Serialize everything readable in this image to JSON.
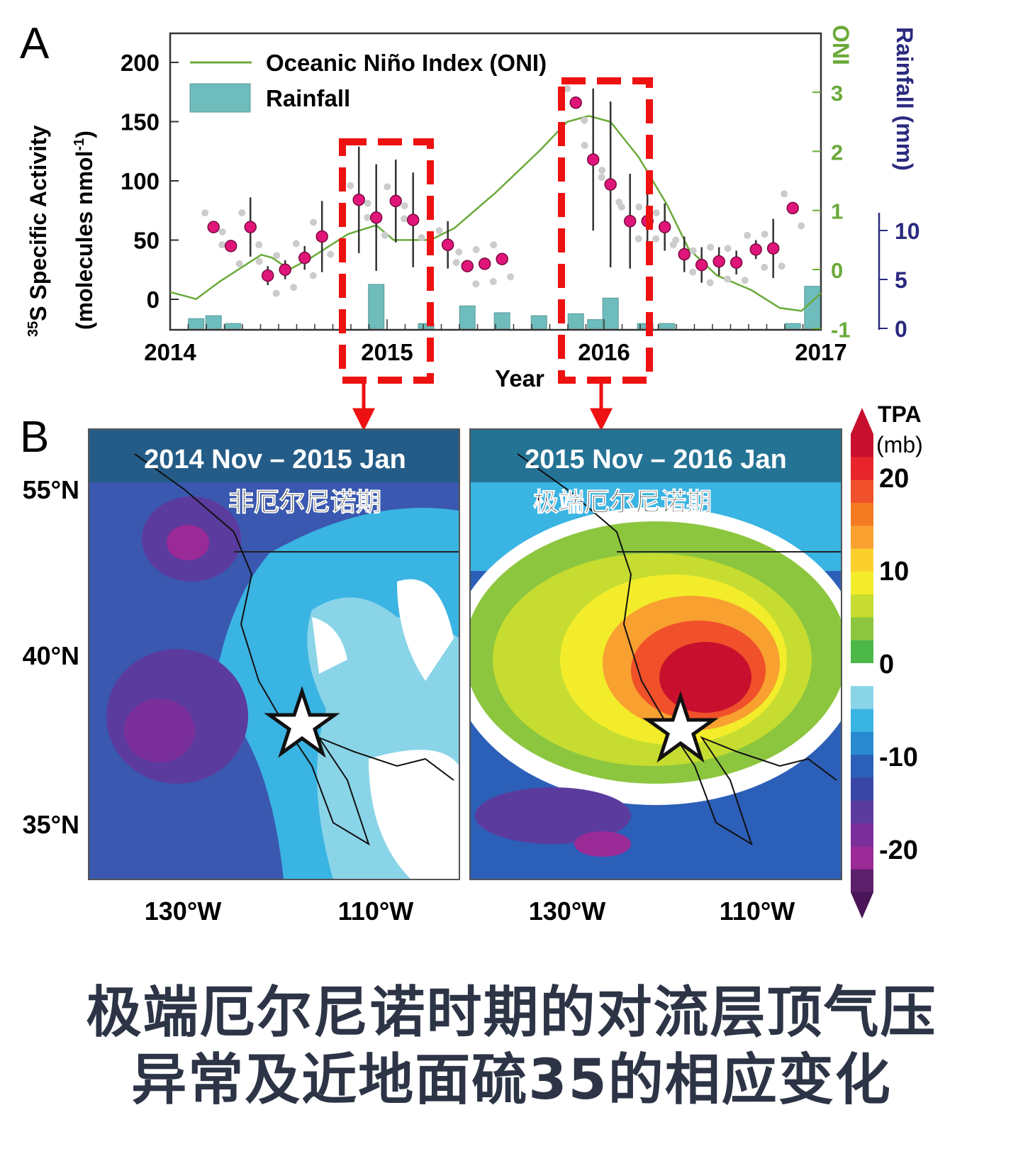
{
  "chart_data": [
    {
      "type": "scatter+line+bar",
      "panel_label": "A",
      "xlabel": "Year",
      "xlim": [
        2014,
        2017
      ],
      "xticks": [
        "2014",
        "2015",
        "2016",
        "2017"
      ],
      "ylabel_line1": "35S Specific Activity",
      "ylabel_sup": "35",
      "ylabel_main": "S Specific Activity",
      "ylabel_line2": "(molecules nmol-1)",
      "ylabel_line2_main": "(molecules nmol",
      "ylabel_line2_sup": "-1",
      "ylabel_line2_end": ")",
      "ylim": [
        -25,
        210
      ],
      "yticks": [
        "200",
        "150",
        "100",
        "50",
        "0"
      ],
      "ytick_values": [
        200,
        150,
        100,
        50,
        0
      ],
      "y2label": "ONI",
      "y2lim": [
        -1,
        3.5
      ],
      "y2ticks": [
        "3",
        "2",
        "1",
        "0",
        "-1"
      ],
      "y2tick_values": [
        3,
        2,
        1,
        0,
        -1
      ],
      "y3label": "Rainfall (mm)",
      "y3ticks": [
        "10",
        "5",
        "0"
      ],
      "y3tick_values": [
        10,
        5,
        0
      ],
      "legend": {
        "oni": "Oceanic Niño Index (ONI)",
        "rain": "Rainfall",
        "placement": "top-left"
      },
      "series": [
        {
          "name": "35S specific activity (monthly mean)",
          "color": "#e0157a",
          "x": [
            2014.2,
            2014.28,
            2014.37,
            2014.45,
            2014.53,
            2014.62,
            2014.7,
            2014.87,
            2014.95,
            2015.04,
            2015.12,
            2015.28,
            2015.37,
            2015.45,
            2015.53,
            2015.87,
            2015.95,
            2016.03,
            2016.12,
            2016.2,
            2016.28,
            2016.37,
            2016.45,
            2016.53,
            2016.61,
            2016.7,
            2016.78,
            2016.87
          ],
          "y": [
            61,
            45,
            61,
            20,
            25,
            35,
            53,
            84,
            69,
            83,
            67,
            46,
            28,
            30,
            34,
            166,
            118,
            97,
            66,
            66,
            61,
            38,
            29,
            32,
            31,
            42,
            43,
            77
          ],
          "err": [
            0,
            0,
            25,
            8,
            8,
            10,
            30,
            45,
            45,
            35,
            40,
            20,
            0,
            0,
            0,
            0,
            60,
            70,
            40,
            30,
            20,
            15,
            15,
            12,
            10,
            8,
            25,
            0
          ]
        },
        {
          "name": "Oceanic Niño Index (ONI)",
          "color": "#6aaa3a",
          "x": [
            2014.0,
            2014.12,
            2014.23,
            2014.42,
            2014.47,
            2014.55,
            2014.65,
            2014.82,
            2014.95,
            2015.03,
            2015.2,
            2015.31,
            2015.5,
            2015.7,
            2015.83,
            2015.93,
            2016.03,
            2016.16,
            2016.29,
            2016.39,
            2016.52,
            2016.68,
            2016.81,
            2016.91,
            2017.0
          ],
          "y": [
            -0.38,
            -0.5,
            -0.2,
            0.25,
            0.2,
            0,
            0.2,
            0.6,
            0.75,
            0.5,
            0.5,
            0.7,
            1.3,
            2.0,
            2.5,
            2.6,
            2.5,
            1.9,
            1.1,
            0.35,
            -0.1,
            -0.35,
            -0.65,
            -0.7,
            -0.4
          ]
        },
        {
          "name": "Rainfall",
          "color": "#6fbcbc",
          "x": [
            2014.12,
            2014.2,
            2014.29,
            2014.95,
            2015.18,
            2015.37,
            2015.53,
            2015.7,
            2015.87,
            2015.96,
            2016.03,
            2016.19,
            2016.29,
            2016.87,
            2016.96
          ],
          "y": [
            1.0,
            1.3,
            0.5,
            4.5,
            0.5,
            2.3,
            1.6,
            1.3,
            1.5,
            0.9,
            3.1,
            0.5,
            0.5,
            0.5,
            4.3
          ]
        }
      ],
      "highlights": [
        "2014 Nov – 2015 Jan",
        "2015 Nov – 2016 Jan"
      ]
    },
    {
      "type": "heatmap",
      "panel_label": "B",
      "panels": [
        {
          "title": "2014 Nov – 2015 Jan",
          "subtitle": "非厄尔尼诺期"
        },
        {
          "title": "2015 Nov – 2016 Jan",
          "subtitle": "极端厄尔尼诺期"
        }
      ],
      "yticks": [
        "55°N",
        "40°N",
        "35°N"
      ],
      "xticks": [
        "130°W",
        "110°W"
      ],
      "colorbar": {
        "label1": "TPA",
        "label2": "(mb)",
        "ticks": [
          "20",
          "10",
          "0",
          "-10",
          "-20"
        ],
        "range": [
          -25,
          25
        ],
        "colors": [
          "#c8102e",
          "#e8252a",
          "#f0502a",
          "#f47a22",
          "#f8a030",
          "#fcd02c",
          "#f2ec2a",
          "#c6dc30",
          "#8cc63f",
          "#4cb848",
          "#ffffff",
          "#8ad4e8",
          "#3ab4e2",
          "#2a8ad0",
          "#2c5fb8",
          "#3a46a6",
          "#5b3c9e",
          "#7a2f9a",
          "#9a2a96",
          "#5c1f6a"
        ]
      }
    }
  ],
  "caption": {
    "line1": "极端厄尔尼诺时期的对流层顶气压",
    "line2": "异常及近地面硫35的相应变化"
  }
}
